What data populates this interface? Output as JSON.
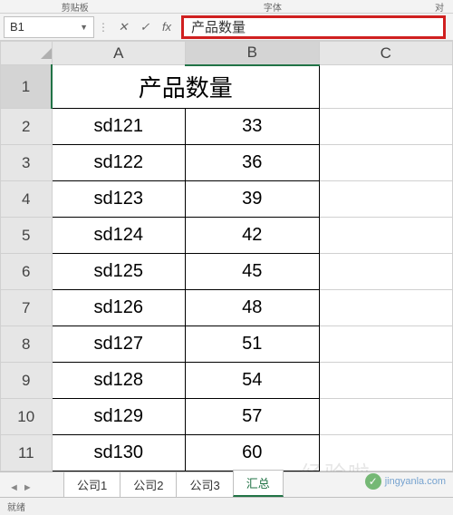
{
  "ribbon": {
    "clipboard_label": "剪贴板",
    "font_label": "字体",
    "align_label": "对"
  },
  "formula_bar": {
    "name_box": "B1",
    "fx": "fx",
    "content": "产品数量"
  },
  "columns": [
    "A",
    "B",
    "C"
  ],
  "rows": [
    "1",
    "2",
    "3",
    "4",
    "5",
    "6",
    "7",
    "8",
    "9",
    "10",
    "11"
  ],
  "merged_title": "产品数量",
  "table": {
    "data": [
      {
        "code": "sd121",
        "qty": "33"
      },
      {
        "code": "sd122",
        "qty": "36"
      },
      {
        "code": "sd123",
        "qty": "39"
      },
      {
        "code": "sd124",
        "qty": "42"
      },
      {
        "code": "sd125",
        "qty": "45"
      },
      {
        "code": "sd126",
        "qty": "48"
      },
      {
        "code": "sd127",
        "qty": "51"
      },
      {
        "code": "sd128",
        "qty": "54"
      },
      {
        "code": "sd129",
        "qty": "57"
      },
      {
        "code": "sd130",
        "qty": "60"
      }
    ]
  },
  "sheet_tabs": {
    "tabs": [
      "公司1",
      "公司2",
      "公司3"
    ],
    "summary": "汇总",
    "active_index": 0
  },
  "status": {
    "ready": "就绪"
  },
  "watermark": {
    "text": "jingyanla.com",
    "big": "经验啦"
  },
  "colors": {
    "highlight_border": "#d02020",
    "excel_green": "#217346",
    "header_bg": "#e6e6e6",
    "grid_line": "#d0d0d0",
    "cell_border": "#000000"
  }
}
